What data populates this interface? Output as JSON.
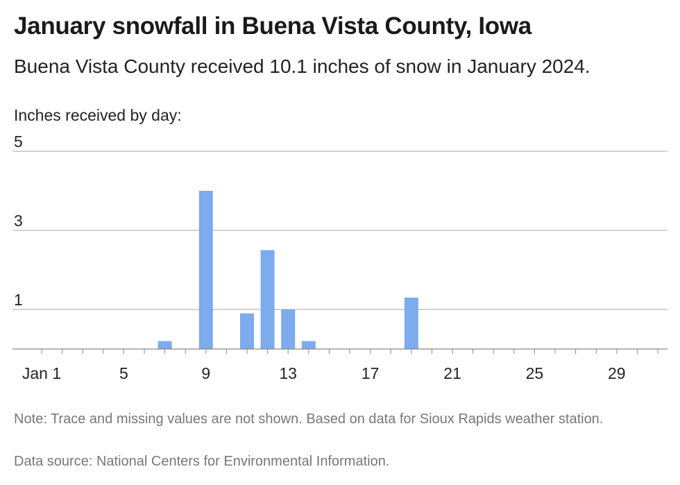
{
  "title": "January snowfall in Buena Vista County, Iowa",
  "subtitle": "Buena Vista County received 10.1 inches of snow in January 2024.",
  "note": "Note: Trace and missing values are not shown. Based on data for Sioux Rapids weather station.",
  "source": "Data source: National Centers for Environmental Information.",
  "colors": {
    "bar": "#7eaaee",
    "grid": "#b8b8b8",
    "axis": "#888888"
  },
  "chart_data": {
    "type": "bar",
    "ylabel": "Inches received by day:",
    "xlim": [
      1,
      31
    ],
    "ylim": [
      0,
      5
    ],
    "y_ticks": [
      "5",
      "3",
      "1"
    ],
    "y_tick_values": [
      5,
      3,
      1
    ],
    "x_ticks": [
      "Jan 1",
      "5",
      "9",
      "13",
      "17",
      "21",
      "25",
      "29"
    ],
    "x_tick_values": [
      1,
      5,
      9,
      13,
      17,
      21,
      25,
      29
    ],
    "grid": true,
    "legend": "none",
    "days": [
      7,
      9,
      11,
      12,
      13,
      14,
      19
    ],
    "values": [
      0.2,
      4.0,
      0.9,
      2.5,
      1.0,
      0.2,
      1.3
    ]
  }
}
